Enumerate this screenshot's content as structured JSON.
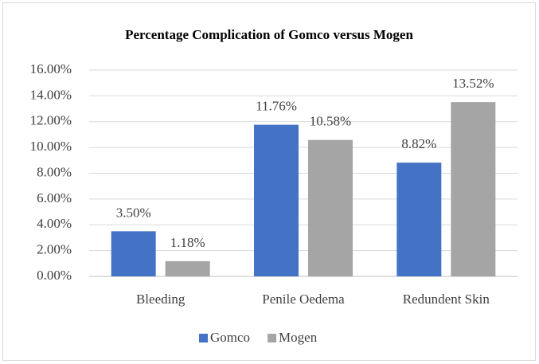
{
  "chart_data": {
    "type": "bar",
    "title": "Percentage Complication of Gomco versus Mogen",
    "categories": [
      "Bleeding",
      "Penile Oedema",
      "Redundent Skin"
    ],
    "series": [
      {
        "name": "Gomco",
        "color": "#4472c4",
        "values": [
          3.5,
          11.76,
          8.82
        ],
        "value_labels": [
          "3.50%",
          "11.76%",
          "8.82%"
        ]
      },
      {
        "name": "Mogen",
        "color": "#a5a5a5",
        "values": [
          1.18,
          10.58,
          13.52
        ],
        "value_labels": [
          "1.18%",
          "10.58%",
          "13.52%"
        ]
      }
    ],
    "ylim": [
      0,
      16
    ],
    "yticks": [
      {
        "value": 0,
        "label": "0.00%"
      },
      {
        "value": 2,
        "label": "2.00%"
      },
      {
        "value": 4,
        "label": "4.00%"
      },
      {
        "value": 6,
        "label": "6.00%"
      },
      {
        "value": 8,
        "label": "8.00%"
      },
      {
        "value": 10,
        "label": "10.00%"
      },
      {
        "value": 12,
        "label": "12.00%"
      },
      {
        "value": 14,
        "label": "14.00%"
      },
      {
        "value": 16,
        "label": "16.00%"
      }
    ],
    "grid": true,
    "legend": "bottom"
  }
}
